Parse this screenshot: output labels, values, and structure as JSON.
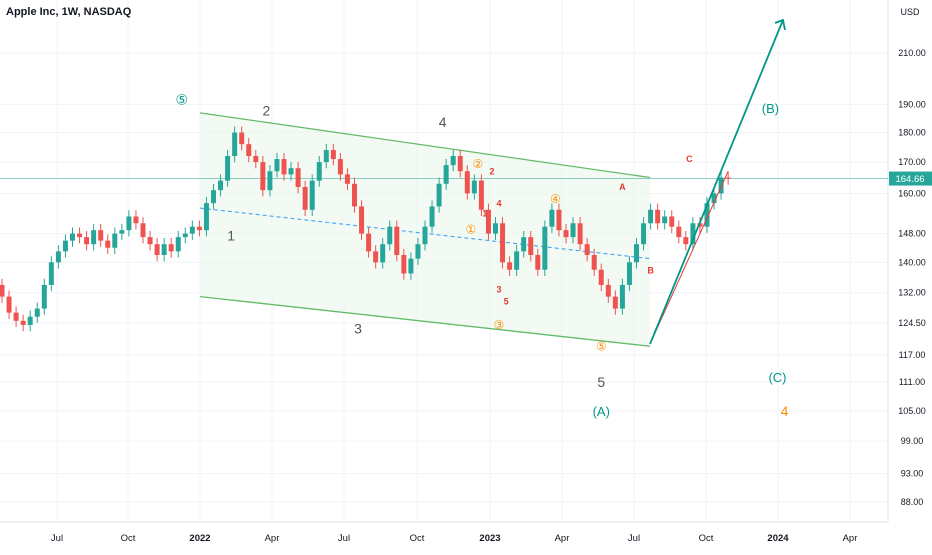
{
  "header": {
    "symbol": "Apple Inc, 1W, NASDAQ"
  },
  "colors": {
    "up": "#26a69a",
    "down": "#ef5350",
    "channel": "#66bb6a",
    "channel_fill": "#e8f5e9",
    "midline": "#42a5f5",
    "teal": "#009688",
    "red": "#e53935",
    "orange": "#fb8c00",
    "gray": "#555555",
    "price_tag": "#26a69a"
  },
  "chart_data": {
    "type": "candlestick",
    "ylabel": "USD",
    "y_ticks": [
      "210.00",
      "190.00",
      "180.00",
      "170.00",
      "160.00",
      "148.00",
      "140.00",
      "132.00",
      "124.50",
      "117.00",
      "111.00",
      "105.00",
      "99.00",
      "93.00",
      "88.00"
    ],
    "x_ticks": [
      "Jul",
      "Oct",
      "2022",
      "Apr",
      "Jul",
      "Oct",
      "2023",
      "Apr",
      "Jul",
      "Oct",
      "2024",
      "Apr"
    ],
    "last_price": "164.66",
    "candles": [
      [
        134,
        131
      ],
      [
        131,
        127
      ],
      [
        127,
        125
      ],
      [
        125,
        124
      ],
      [
        124,
        126
      ],
      [
        126,
        128
      ],
      [
        128,
        134
      ],
      [
        134,
        140
      ],
      [
        140,
        143
      ],
      [
        143,
        146
      ],
      [
        146,
        148
      ],
      [
        148,
        147
      ],
      [
        147,
        145
      ],
      [
        145,
        149
      ],
      [
        149,
        146
      ],
      [
        146,
        144
      ],
      [
        144,
        148
      ],
      [
        148,
        149
      ],
      [
        149,
        153
      ],
      [
        153,
        151
      ],
      [
        151,
        147
      ],
      [
        147,
        145
      ],
      [
        145,
        142
      ],
      [
        142,
        145
      ],
      [
        145,
        143
      ],
      [
        143,
        147
      ],
      [
        147,
        148
      ],
      [
        148,
        150
      ],
      [
        150,
        149
      ],
      [
        149,
        157
      ],
      [
        157,
        161
      ],
      [
        161,
        164
      ],
      [
        164,
        172
      ],
      [
        172,
        180
      ],
      [
        180,
        176
      ],
      [
        176,
        172
      ],
      [
        172,
        170
      ],
      [
        170,
        161
      ],
      [
        161,
        167
      ],
      [
        167,
        171
      ],
      [
        171,
        166
      ],
      [
        166,
        168
      ],
      [
        168,
        162
      ],
      [
        162,
        155
      ],
      [
        155,
        164
      ],
      [
        164,
        170
      ],
      [
        170,
        174
      ],
      [
        174,
        171
      ],
      [
        171,
        166
      ],
      [
        166,
        163
      ],
      [
        163,
        156
      ],
      [
        156,
        148
      ],
      [
        148,
        143
      ],
      [
        143,
        140
      ],
      [
        140,
        145
      ],
      [
        145,
        150
      ],
      [
        150,
        142
      ],
      [
        142,
        137
      ],
      [
        137,
        141
      ],
      [
        141,
        145
      ],
      [
        145,
        150
      ],
      [
        150,
        156
      ],
      [
        156,
        163
      ],
      [
        163,
        169
      ],
      [
        169,
        172
      ],
      [
        172,
        167
      ],
      [
        167,
        160
      ],
      [
        160,
        164
      ],
      [
        164,
        155
      ],
      [
        155,
        148
      ],
      [
        148,
        151
      ],
      [
        151,
        140
      ],
      [
        140,
        138
      ],
      [
        138,
        143
      ],
      [
        143,
        147
      ],
      [
        147,
        142
      ],
      [
        142,
        138
      ],
      [
        138,
        150
      ],
      [
        150,
        155
      ],
      [
        155,
        149
      ],
      [
        149,
        147
      ],
      [
        147,
        151
      ],
      [
        151,
        145
      ],
      [
        145,
        142
      ],
      [
        142,
        138
      ],
      [
        138,
        134
      ],
      [
        134,
        131
      ],
      [
        131,
        128
      ],
      [
        128,
        134
      ],
      [
        134,
        140
      ],
      [
        140,
        145
      ],
      [
        145,
        151
      ],
      [
        151,
        155
      ],
      [
        155,
        151
      ],
      [
        151,
        153
      ],
      [
        153,
        150
      ],
      [
        150,
        147
      ],
      [
        147,
        145
      ],
      [
        145,
        151
      ],
      [
        151,
        150
      ],
      [
        150,
        157
      ],
      [
        157,
        160
      ],
      [
        160,
        165
      ],
      [
        165,
        164.66
      ]
    ],
    "start_month_index": 0
  },
  "annotations": {
    "primary": [
      {
        "t": "⑤",
        "w": 25.5,
        "p": 190,
        "c": "teal"
      },
      {
        "t": "2",
        "w": 37.5,
        "p": 186,
        "c": "gray"
      },
      {
        "t": "1",
        "w": 32.5,
        "p": 146,
        "c": "gray"
      },
      {
        "t": "3",
        "w": 50.5,
        "p": 122,
        "c": "gray"
      },
      {
        "t": "4",
        "w": 62.5,
        "p": 182,
        "c": "gray"
      },
      {
        "t": "(B)",
        "w": 109,
        "p": 187,
        "c": "teal"
      },
      {
        "t": "5",
        "w": 85,
        "p": 110,
        "c": "gray"
      },
      {
        "t": "(A)",
        "w": 85,
        "p": 104,
        "c": "teal"
      },
      {
        "t": "(C)",
        "w": 110,
        "p": 111,
        "c": "teal"
      },
      {
        "t": "4",
        "w": 111,
        "p": 104,
        "c": "orange"
      }
    ],
    "minor": [
      {
        "t": "②",
        "w": 67.5,
        "p": 168,
        "c": "orange"
      },
      {
        "t": "①",
        "w": 66.5,
        "p": 148,
        "c": "orange"
      },
      {
        "t": "④",
        "w": 78.5,
        "p": 157,
        "c": "orange"
      },
      {
        "t": "③",
        "w": 70.5,
        "p": 123,
        "c": "orange"
      },
      {
        "t": "⑤",
        "w": 85,
        "p": 118,
        "c": "orange"
      },
      {
        "t": "2",
        "w": 69.5,
        "p": 166,
        "c": "red"
      },
      {
        "t": "1",
        "w": 68.5,
        "p": 153,
        "c": "red"
      },
      {
        "t": "4",
        "w": 70.5,
        "p": 156,
        "c": "red"
      },
      {
        "t": "3",
        "w": 70.5,
        "p": 132,
        "c": "red"
      },
      {
        "t": "5",
        "w": 71.5,
        "p": 129,
        "c": "red"
      },
      {
        "t": "A",
        "w": 88,
        "p": 161,
        "c": "red"
      },
      {
        "t": "B",
        "w": 92,
        "p": 137,
        "c": "red"
      },
      {
        "t": "C",
        "w": 97.5,
        "p": 170,
        "c": "red"
      }
    ]
  }
}
